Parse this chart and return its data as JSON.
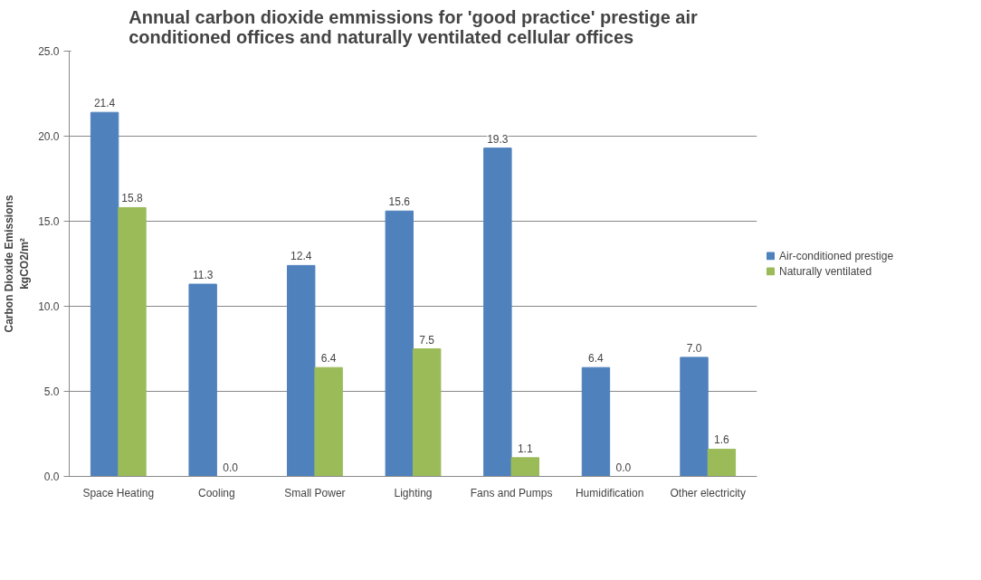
{
  "chart_data": {
    "type": "bar",
    "title": "Annual carbon dioxide emmissions for 'good practice' prestige air\nconditioned offices and naturally ventilated cellular offices",
    "ylabel": "Carbon Dioxide Emissions\nkgCO2/m²",
    "categories": [
      "Space Heating",
      "Cooling",
      "Small Power",
      "Lighting",
      "Fans and Pumps",
      "Humidification",
      "Other electricity"
    ],
    "series": [
      {
        "name": "Air-conditioned prestige",
        "color": "#4f81bd",
        "values": [
          21.4,
          11.3,
          12.4,
          15.6,
          19.3,
          6.4,
          7.0
        ],
        "value_labels": [
          "21.4",
          "11.3",
          "12.4",
          "15.6",
          "19.3",
          "6.4",
          "7.0"
        ]
      },
      {
        "name": "Naturally ventilated",
        "color": "#9bbb59",
        "values": [
          15.8,
          0.0,
          6.4,
          7.5,
          1.1,
          0.0,
          1.6
        ],
        "value_labels": [
          "15.8",
          "0.0",
          "6.4",
          "7.5",
          "1.1",
          "0.0",
          "1.6"
        ]
      }
    ],
    "ylim": [
      0,
      25
    ],
    "yticks": [
      {
        "value": 0,
        "label": "0.0"
      },
      {
        "value": 5,
        "label": "5.0"
      },
      {
        "value": 10,
        "label": "10.0"
      },
      {
        "value": 15,
        "label": "15.0"
      },
      {
        "value": 20,
        "label": "20.0"
      },
      {
        "value": 25,
        "label": "25.0"
      }
    ],
    "grid": "y",
    "legend": "right"
  }
}
